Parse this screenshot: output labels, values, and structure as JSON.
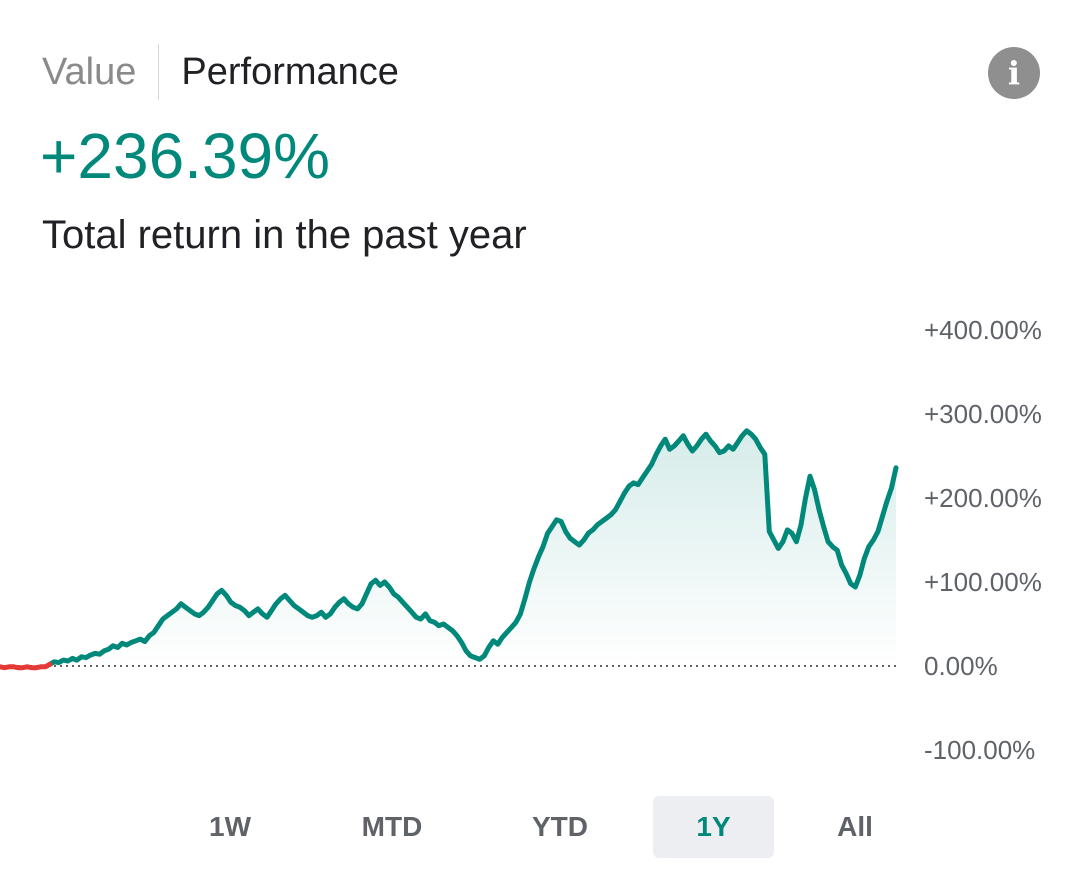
{
  "header": {
    "tabs": [
      {
        "label": "Value",
        "active": false
      },
      {
        "label": "Performance",
        "active": true
      }
    ],
    "info_icon": "info-icon",
    "info_glyph": "i"
  },
  "summary": {
    "return_text": "+236.39%",
    "caption": "Total return in the past year",
    "accent_color": "#00897b",
    "negative_color": "#e53935"
  },
  "chart_data": {
    "type": "line",
    "title": "",
    "xlabel": "",
    "ylabel": "",
    "ylim": [
      -100,
      400
    ],
    "y_ticks": [
      {
        "value": 400,
        "label": "+400.00%"
      },
      {
        "value": 300,
        "label": "+300.00%"
      },
      {
        "value": 200,
        "label": "+200.00%"
      },
      {
        "value": 100,
        "label": "+100.00%"
      },
      {
        "value": 0,
        "label": "0.00%"
      },
      {
        "value": -100,
        "label": "-100.00%"
      }
    ],
    "baseline": 0,
    "grid": false,
    "series": [
      {
        "values": [
          -1,
          -2,
          -1,
          -1,
          -2,
          -2,
          -1,
          -2,
          -2,
          -1,
          -1,
          2,
          5,
          4,
          7,
          6,
          9,
          7,
          11,
          10,
          13,
          15,
          14,
          18,
          20,
          24,
          22,
          27,
          25,
          28,
          30,
          32,
          29,
          36,
          40,
          48,
          56,
          60,
          64,
          68,
          74,
          70,
          66,
          62,
          60,
          64,
          70,
          78,
          86,
          90,
          84,
          76,
          72,
          70,
          66,
          60,
          64,
          68,
          62,
          58,
          66,
          74,
          80,
          84,
          78,
          72,
          68,
          64,
          60,
          58,
          60,
          64,
          58,
          62,
          70,
          76,
          80,
          74,
          70,
          68,
          74,
          86,
          98,
          102,
          96,
          100,
          94,
          86,
          82,
          76,
          70,
          64,
          58,
          56,
          62,
          54,
          52,
          48,
          50,
          46,
          42,
          36,
          28,
          18,
          12,
          10,
          8,
          12,
          22,
          30,
          26,
          34,
          40,
          46,
          52,
          62,
          80,
          100,
          116,
          130,
          142,
          158,
          166,
          174,
          172,
          160,
          152,
          148,
          144,
          150,
          158,
          162,
          168,
          172,
          176,
          180,
          186,
          196,
          206,
          214,
          218,
          216,
          224,
          232,
          240,
          252,
          262,
          270,
          258,
          262,
          268,
          274,
          264,
          256,
          262,
          270,
          276,
          268,
          262,
          254,
          256,
          262,
          258,
          266,
          274,
          280,
          276,
          270,
          260,
          252,
          160,
          150,
          140,
          148,
          162,
          158,
          148,
          168,
          200,
          226,
          210,
          186,
          166,
          148,
          142,
          138,
          120,
          110,
          98,
          94,
          108,
          128,
          142,
          150,
          160,
          178,
          196,
          212,
          236
        ],
        "color": "#00897b"
      }
    ],
    "negative_segment_end_index": 11
  },
  "ranges": [
    {
      "label": "1W",
      "active": false
    },
    {
      "label": "MTD",
      "active": false
    },
    {
      "label": "YTD",
      "active": false
    },
    {
      "label": "1Y",
      "active": true
    },
    {
      "label": "All",
      "active": false
    }
  ]
}
